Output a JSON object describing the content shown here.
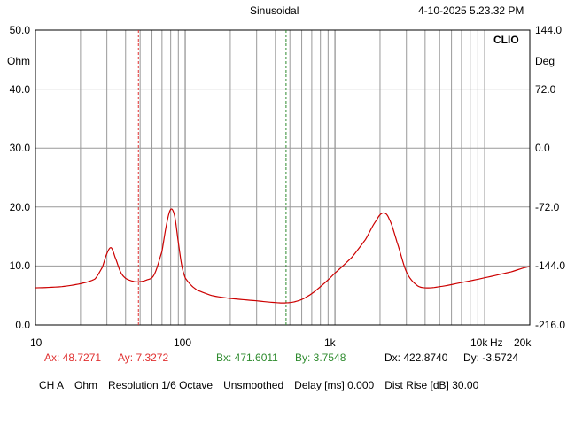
{
  "header": {
    "mode": "Sinusoidal",
    "timestamp": "4-10-2025 5.23.32 PM",
    "brand": "CLIO"
  },
  "axes": {
    "left_unit": "Ohm",
    "right_unit": "Deg",
    "left_ticks": [
      "50.0",
      "40.0",
      "30.0",
      "20.0",
      "10.0",
      "0.0"
    ],
    "right_ticks": [
      "144.0",
      "72.0",
      "0.0",
      "-72.0",
      "-144.0",
      "-216.0"
    ],
    "x_ticks": [
      "10",
      "100",
      "1k",
      "10k",
      "Hz",
      "20k"
    ]
  },
  "markers": {
    "ax_label": "Ax: 48.7271",
    "ay_label": "Ay: 7.3272",
    "bx_label": "Bx: 471.6011",
    "by_label": "By: 3.7548",
    "dx_label": "Dx: 422.8740",
    "dy_label": "Dy: -3.5724",
    "a_color": "#e03030",
    "b_color": "#2e8b2e"
  },
  "footer": {
    "channel": "CH A",
    "unit": "Ohm",
    "resolution": "Resolution 1/6 Octave",
    "smoothing": "Unsmoothed",
    "delay": "Delay [ms] 0.000",
    "dist_rise": "Dist Rise [dB] 30.00"
  },
  "chart_data": {
    "type": "line",
    "xlabel": "Hz",
    "ylabel": "Ohm",
    "x_scale": "log",
    "xlim": [
      10,
      20000
    ],
    "ylim": [
      0,
      50
    ],
    "y2lim": [
      -216,
      144
    ],
    "y2label": "Deg",
    "grid": true,
    "series": [
      {
        "color": "#cc0000",
        "x": [
          10,
          15,
          20,
          25,
          28,
          30,
          32,
          34,
          37,
          40,
          45,
          48.7,
          55,
          62,
          70,
          75,
          80,
          85,
          90,
          95,
          100,
          110,
          120,
          150,
          200,
          300,
          400,
          471.6,
          550,
          650,
          800,
          1000,
          1300,
          1600,
          1900,
          2100,
          2300,
          2600,
          3000,
          3500,
          4000,
          5000,
          7000,
          10000,
          15000,
          20000
        ],
        "y": [
          6.3,
          6.5,
          7.0,
          7.8,
          9.8,
          12.1,
          13.1,
          11.5,
          9.0,
          7.9,
          7.4,
          7.33,
          7.6,
          8.5,
          12.5,
          17.0,
          19.6,
          18.5,
          14.0,
          10.0,
          8.0,
          6.7,
          5.9,
          5.0,
          4.5,
          4.1,
          3.8,
          3.75,
          4.0,
          4.8,
          6.5,
          8.8,
          11.5,
          14.5,
          17.8,
          19.0,
          18.0,
          14.0,
          9.0,
          6.8,
          6.3,
          6.5,
          7.2,
          8.0,
          9.0,
          9.9
        ]
      }
    ],
    "cursors": [
      {
        "name": "A",
        "x": 48.7271,
        "y": 7.3272
      },
      {
        "name": "B",
        "x": 471.6011,
        "y": 3.7548
      }
    ]
  }
}
